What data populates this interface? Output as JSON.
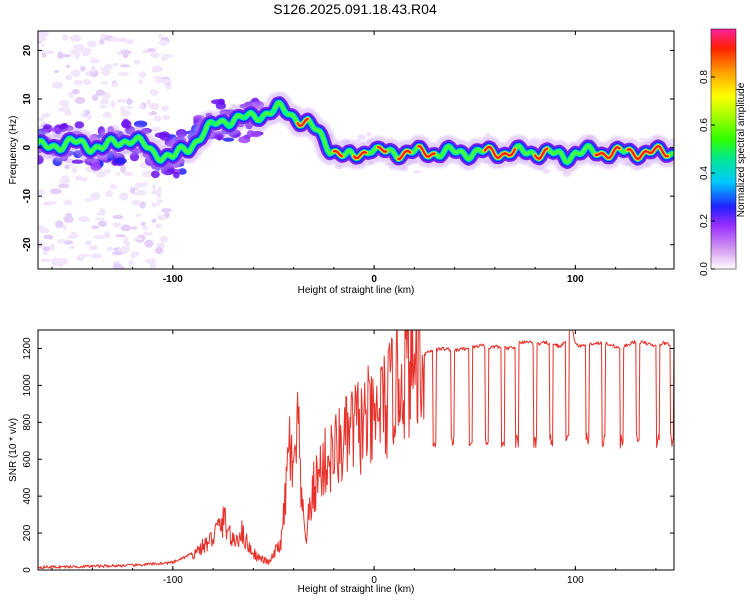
{
  "title": "S126.2025.091.18.43.R04",
  "chart_data": [
    {
      "type": "heatmap",
      "description_role": "spectrogram",
      "xlabel": "Height of straight line (km)",
      "ylabel": "Frequency (Hz)",
      "xlim": [
        -167,
        149
      ],
      "ylim": [
        -25,
        24
      ],
      "x_ticks": [
        "-100",
        "0",
        "100"
      ],
      "x_tick_values": [
        -100,
        0,
        100
      ],
      "y_ticks": [
        "20",
        "10",
        "0",
        "-10",
        "-20"
      ],
      "y_tick_values": [
        20,
        10,
        0,
        -10,
        -20
      ],
      "ridge": {
        "x": [
          -167,
          -150,
          -135,
          -120,
          -110,
          -100,
          -92,
          -85,
          -78,
          -70,
          -62,
          -55,
          -48,
          -42,
          -38,
          -33,
          -28,
          -22,
          -18,
          -14,
          -10,
          -6,
          -2,
          2,
          8,
          15,
          25,
          40,
          55,
          70,
          85,
          95,
          100,
          110,
          120,
          135,
          149
        ],
        "y": [
          0,
          1,
          0,
          2,
          -1,
          -2,
          0,
          3,
          5,
          6,
          6,
          7,
          8,
          7,
          6,
          5,
          3,
          0,
          -1,
          -2,
          -2,
          -1,
          0,
          -1,
          -1,
          -1,
          -1,
          -1,
          -1,
          -1,
          -1,
          -2,
          -1,
          -1,
          -1,
          -1,
          -1
        ]
      },
      "colorbar": {
        "label": "Normalized spectral amplitude",
        "ticks": [
          "0.0",
          "0.2",
          "0.4",
          "0.6",
          "0.8"
        ],
        "tick_values": [
          0.0,
          0.2,
          0.4,
          0.6,
          0.8
        ],
        "range": [
          0,
          1
        ]
      }
    },
    {
      "type": "line",
      "xlabel": "Height of straight line (km)",
      "ylabel": "SNR (10 * v/v)",
      "xlim": [
        -167,
        149
      ],
      "ylim": [
        0,
        1300
      ],
      "x_ticks": [
        "-100",
        "0",
        "100"
      ],
      "x_tick_values": [
        -100,
        0,
        100
      ],
      "y_ticks": [
        "0",
        "200",
        "400",
        "600",
        "800",
        "1000",
        "1200"
      ],
      "y_tick_values": [
        0,
        200,
        400,
        600,
        800,
        1000,
        1200
      ],
      "series": [
        {
          "name": "SNR",
          "color": "#e8302a",
          "x": [
            -167,
            -140,
            -120,
            -100,
            -90,
            -82,
            -78,
            -74,
            -70,
            -66,
            -62,
            -58,
            -52,
            -46,
            -44,
            -42,
            -40,
            -38,
            -36,
            -34,
            -30,
            -26,
            -22,
            -18,
            -14,
            -10,
            -6,
            -3,
            0,
            3,
            6,
            10,
            14,
            18,
            22,
            24,
            26,
            30,
            34,
            40,
            46,
            50,
            54,
            56,
            60,
            66,
            70,
            72,
            76,
            80,
            84,
            88,
            92,
            96,
            98,
            100,
            102,
            106,
            110,
            114,
            118,
            122,
            126,
            130,
            134,
            138,
            140,
            144,
            149
          ],
          "y": [
            15,
            20,
            25,
            40,
            90,
            150,
            220,
            270,
            140,
            210,
            120,
            70,
            40,
            160,
            400,
            700,
            460,
            820,
            340,
            180,
            440,
            560,
            600,
            660,
            700,
            780,
            780,
            820,
            760,
            900,
            880,
            1000,
            1060,
            1100,
            1180,
            1150,
            1180,
            1190,
            1200,
            1190,
            1200,
            1210,
            1220,
            1200,
            1210,
            1200,
            1210,
            1230,
            1240,
            1220,
            1230,
            1230,
            1210,
            1240,
            1320,
            1230,
            1210,
            1220,
            1230,
            1230,
            1220,
            1200,
            1220,
            1240,
            1230,
            1220,
            1210,
            1230,
            1220
          ]
        }
      ]
    }
  ]
}
